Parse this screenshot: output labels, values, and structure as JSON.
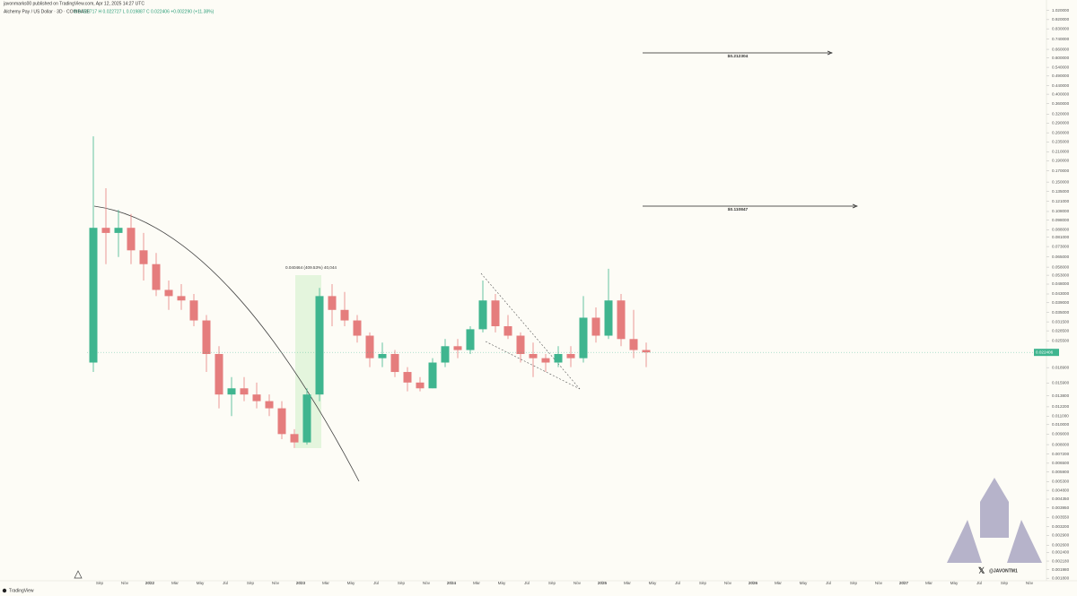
{
  "chart_data": {
    "type": "candlestick",
    "publisher": "javonmarks00 published on TradingView.com, Apr 12, 2025 14:27 UTC",
    "title": "Alchemy Pay / US Dollar · 3D · COINBASE",
    "ohlc_line": "O 0.020717  H 0.022727  L 0.019887  C 0.022406  +0.002290 (+11.38%)",
    "footer": "TradingView",
    "watermark": "@JAVONTM1",
    "log_scale": true,
    "up_color": "#3fb58f",
    "down_color": "#e57d7d",
    "x": [
      "2021-08",
      "2021-09",
      "2021-10",
      "2021-11",
      "2021-12",
      "2022-01",
      "2022-02",
      "2022-03",
      "2022-04",
      "2022-05",
      "2022-06",
      "2022-07",
      "2022-08",
      "2022-09",
      "2022-10",
      "2022-11",
      "2022-12",
      "2023-01",
      "2023-02",
      "2023-03",
      "2023-04",
      "2023-05",
      "2023-06",
      "2023-07",
      "2023-08",
      "2023-09",
      "2023-10",
      "2023-11",
      "2023-12",
      "2024-01",
      "2024-02",
      "2024-03",
      "2024-04",
      "2024-05",
      "2024-06",
      "2024-07",
      "2024-08",
      "2024-09",
      "2024-10",
      "2024-11",
      "2024-12",
      "2025-01",
      "2025-02",
      "2025-03",
      "2025-04"
    ],
    "open": [
      0.02,
      0.09,
      0.085,
      0.09,
      0.07,
      0.06,
      0.045,
      0.042,
      0.04,
      0.032,
      0.022,
      0.014,
      0.015,
      0.014,
      0.013,
      0.012,
      0.009,
      0.0082,
      0.014,
      0.042,
      0.036,
      0.032,
      0.027,
      0.021,
      0.022,
      0.018,
      0.016,
      0.015,
      0.02,
      0.024,
      0.023,
      0.029,
      0.04,
      0.03,
      0.027,
      0.022,
      0.021,
      0.02,
      0.022,
      0.021,
      0.033,
      0.027,
      0.04,
      0.026,
      0.023
    ],
    "high": [
      0.25,
      0.14,
      0.11,
      0.105,
      0.085,
      0.068,
      0.05,
      0.048,
      0.043,
      0.034,
      0.024,
      0.017,
      0.017,
      0.016,
      0.014,
      0.013,
      0.0095,
      0.015,
      0.046,
      0.048,
      0.044,
      0.034,
      0.028,
      0.025,
      0.023,
      0.019,
      0.017,
      0.021,
      0.026,
      0.026,
      0.03,
      0.05,
      0.043,
      0.034,
      0.028,
      0.025,
      0.022,
      0.024,
      0.024,
      0.042,
      0.037,
      0.057,
      0.043,
      0.036,
      0.025
    ],
    "low": [
      0.018,
      0.06,
      0.065,
      0.06,
      0.05,
      0.042,
      0.036,
      0.036,
      0.03,
      0.018,
      0.012,
      0.011,
      0.013,
      0.012,
      0.011,
      0.0085,
      0.0077,
      0.008,
      0.013,
      0.03,
      0.03,
      0.025,
      0.019,
      0.019,
      0.017,
      0.0145,
      0.0145,
      0.015,
      0.019,
      0.021,
      0.022,
      0.028,
      0.028,
      0.026,
      0.02,
      0.017,
      0.018,
      0.019,
      0.019,
      0.02,
      0.025,
      0.026,
      0.024,
      0.021,
      0.019
    ],
    "close": [
      0.09,
      0.085,
      0.09,
      0.07,
      0.06,
      0.045,
      0.042,
      0.04,
      0.032,
      0.022,
      0.014,
      0.015,
      0.014,
      0.013,
      0.012,
      0.009,
      0.0082,
      0.014,
      0.042,
      0.036,
      0.032,
      0.027,
      0.021,
      0.022,
      0.018,
      0.016,
      0.015,
      0.02,
      0.024,
      0.023,
      0.029,
      0.04,
      0.03,
      0.027,
      0.022,
      0.021,
      0.02,
      0.022,
      0.021,
      0.033,
      0.027,
      0.04,
      0.026,
      0.023,
      0.022406
    ],
    "last_price": 0.022406,
    "xlim": [
      "2021-08",
      "2027-12"
    ],
    "xticks": [
      {
        "value": "2021-09",
        "label": "Sep"
      },
      {
        "value": "2021-11",
        "label": "Nov"
      },
      {
        "value": "2022-01",
        "label": "2022"
      },
      {
        "value": "2022-03",
        "label": "Mar"
      },
      {
        "value": "2022-05",
        "label": "May"
      },
      {
        "value": "2022-07",
        "label": "Jul"
      },
      {
        "value": "2022-09",
        "label": "Sep"
      },
      {
        "value": "2022-11",
        "label": "Nov"
      },
      {
        "value": "2023-01",
        "label": "2023"
      },
      {
        "value": "2023-03",
        "label": "Mar"
      },
      {
        "value": "2023-05",
        "label": "May"
      },
      {
        "value": "2023-07",
        "label": "Jul"
      },
      {
        "value": "2023-09",
        "label": "Sep"
      },
      {
        "value": "2023-11",
        "label": "Nov"
      },
      {
        "value": "2024-01",
        "label": "2024"
      },
      {
        "value": "2024-03",
        "label": "Mar"
      },
      {
        "value": "2024-05",
        "label": "May"
      },
      {
        "value": "2024-07",
        "label": "Jul"
      },
      {
        "value": "2024-09",
        "label": "Sep"
      },
      {
        "value": "2024-11",
        "label": "Nov"
      },
      {
        "value": "2025-01",
        "label": "2025"
      },
      {
        "value": "2025-03",
        "label": "Mar"
      },
      {
        "value": "2025-05",
        "label": "May"
      },
      {
        "value": "2025-07",
        "label": "Jul"
      },
      {
        "value": "2025-09",
        "label": "Sep"
      },
      {
        "value": "2025-11",
        "label": "Nov"
      },
      {
        "value": "2026-01",
        "label": "2026"
      },
      {
        "value": "2026-03",
        "label": "Mar"
      },
      {
        "value": "2026-05",
        "label": "May"
      },
      {
        "value": "2026-07",
        "label": "Jul"
      },
      {
        "value": "2026-09",
        "label": "Sep"
      },
      {
        "value": "2026-11",
        "label": "Nov"
      },
      {
        "value": "2027-01",
        "label": "2027"
      },
      {
        "value": "2027-03",
        "label": "Mar"
      },
      {
        "value": "2027-05",
        "label": "May"
      },
      {
        "value": "2027-07",
        "label": "Jul"
      },
      {
        "value": "2027-09",
        "label": "Sep"
      },
      {
        "value": "2027-11",
        "label": "Nov"
      }
    ],
    "ylim": [
      0.00175,
      1.1
    ],
    "yticks": [
      {
        "value": 1.02,
        "label": "1.020000"
      },
      {
        "value": 0.92,
        "label": "0.920000"
      },
      {
        "value": 0.83,
        "label": "0.830000"
      },
      {
        "value": 0.74,
        "label": "0.740000"
      },
      {
        "value": 0.66,
        "label": "0.660000"
      },
      {
        "value": 0.6,
        "label": "0.600000"
      },
      {
        "value": 0.54,
        "label": "0.540000"
      },
      {
        "value": 0.49,
        "label": "0.490000"
      },
      {
        "value": 0.44,
        "label": "0.440000"
      },
      {
        "value": 0.4,
        "label": "0.400000"
      },
      {
        "value": 0.36,
        "label": "0.360000"
      },
      {
        "value": 0.32,
        "label": "0.320000"
      },
      {
        "value": 0.29,
        "label": "0.290000"
      },
      {
        "value": 0.26,
        "label": "0.260000"
      },
      {
        "value": 0.235,
        "label": "0.235000"
      },
      {
        "value": 0.21,
        "label": "0.210000"
      },
      {
        "value": 0.19,
        "label": "0.190000"
      },
      {
        "value": 0.17,
        "label": "0.170000"
      },
      {
        "value": 0.15,
        "label": "0.150000"
      },
      {
        "value": 0.135,
        "label": "0.135000"
      },
      {
        "value": 0.121,
        "label": "0.121000"
      },
      {
        "value": 0.108,
        "label": "0.108000"
      },
      {
        "value": 0.098,
        "label": "0.098000"
      },
      {
        "value": 0.088,
        "label": "0.088000"
      },
      {
        "value": 0.081,
        "label": "0.081000"
      },
      {
        "value": 0.073,
        "label": "0.073000"
      },
      {
        "value": 0.065,
        "label": "0.065000"
      },
      {
        "value": 0.058,
        "label": "0.058000"
      },
      {
        "value": 0.053,
        "label": "0.053000"
      },
      {
        "value": 0.048,
        "label": "0.048000"
      },
      {
        "value": 0.043,
        "label": "0.043000"
      },
      {
        "value": 0.039,
        "label": "0.039000"
      },
      {
        "value": 0.035,
        "label": "0.035000"
      },
      {
        "value": 0.0315,
        "label": "0.031500"
      },
      {
        "value": 0.0285,
        "label": "0.028500"
      },
      {
        "value": 0.0255,
        "label": "0.025500"
      },
      {
        "value": 0.0189,
        "label": "0.018900"
      },
      {
        "value": 0.0159,
        "label": "0.015900"
      },
      {
        "value": 0.0138,
        "label": "0.013800"
      },
      {
        "value": 0.0122,
        "label": "0.012200"
      },
      {
        "value": 0.011,
        "label": "0.011000"
      },
      {
        "value": 0.01,
        "label": "0.010000"
      },
      {
        "value": 0.009,
        "label": "0.009000"
      },
      {
        "value": 0.008,
        "label": "0.008000"
      },
      {
        "value": 0.0072,
        "label": "0.007200"
      },
      {
        "value": 0.0065,
        "label": "0.006500"
      },
      {
        "value": 0.0059,
        "label": "0.005900"
      },
      {
        "value": 0.0053,
        "label": "0.005300"
      },
      {
        "value": 0.0048,
        "label": "0.004800"
      },
      {
        "value": 0.00435,
        "label": "0.004350"
      },
      {
        "value": 0.00395,
        "label": "0.003950"
      },
      {
        "value": 0.00355,
        "label": "0.003550"
      },
      {
        "value": 0.0032,
        "label": "0.003200"
      },
      {
        "value": 0.0029,
        "label": "0.002900"
      },
      {
        "value": 0.0026,
        "label": "0.002600"
      },
      {
        "value": 0.0024,
        "label": "0.002400"
      },
      {
        "value": 0.00218,
        "label": "0.002180"
      },
      {
        "value": 0.00198,
        "label": "0.001980"
      },
      {
        "value": 0.0018,
        "label": "0.001800"
      }
    ],
    "annotations": [
      "$0.212304",
      "$0.110847",
      "0.040464 (409.53%) 40,044"
    ]
  }
}
